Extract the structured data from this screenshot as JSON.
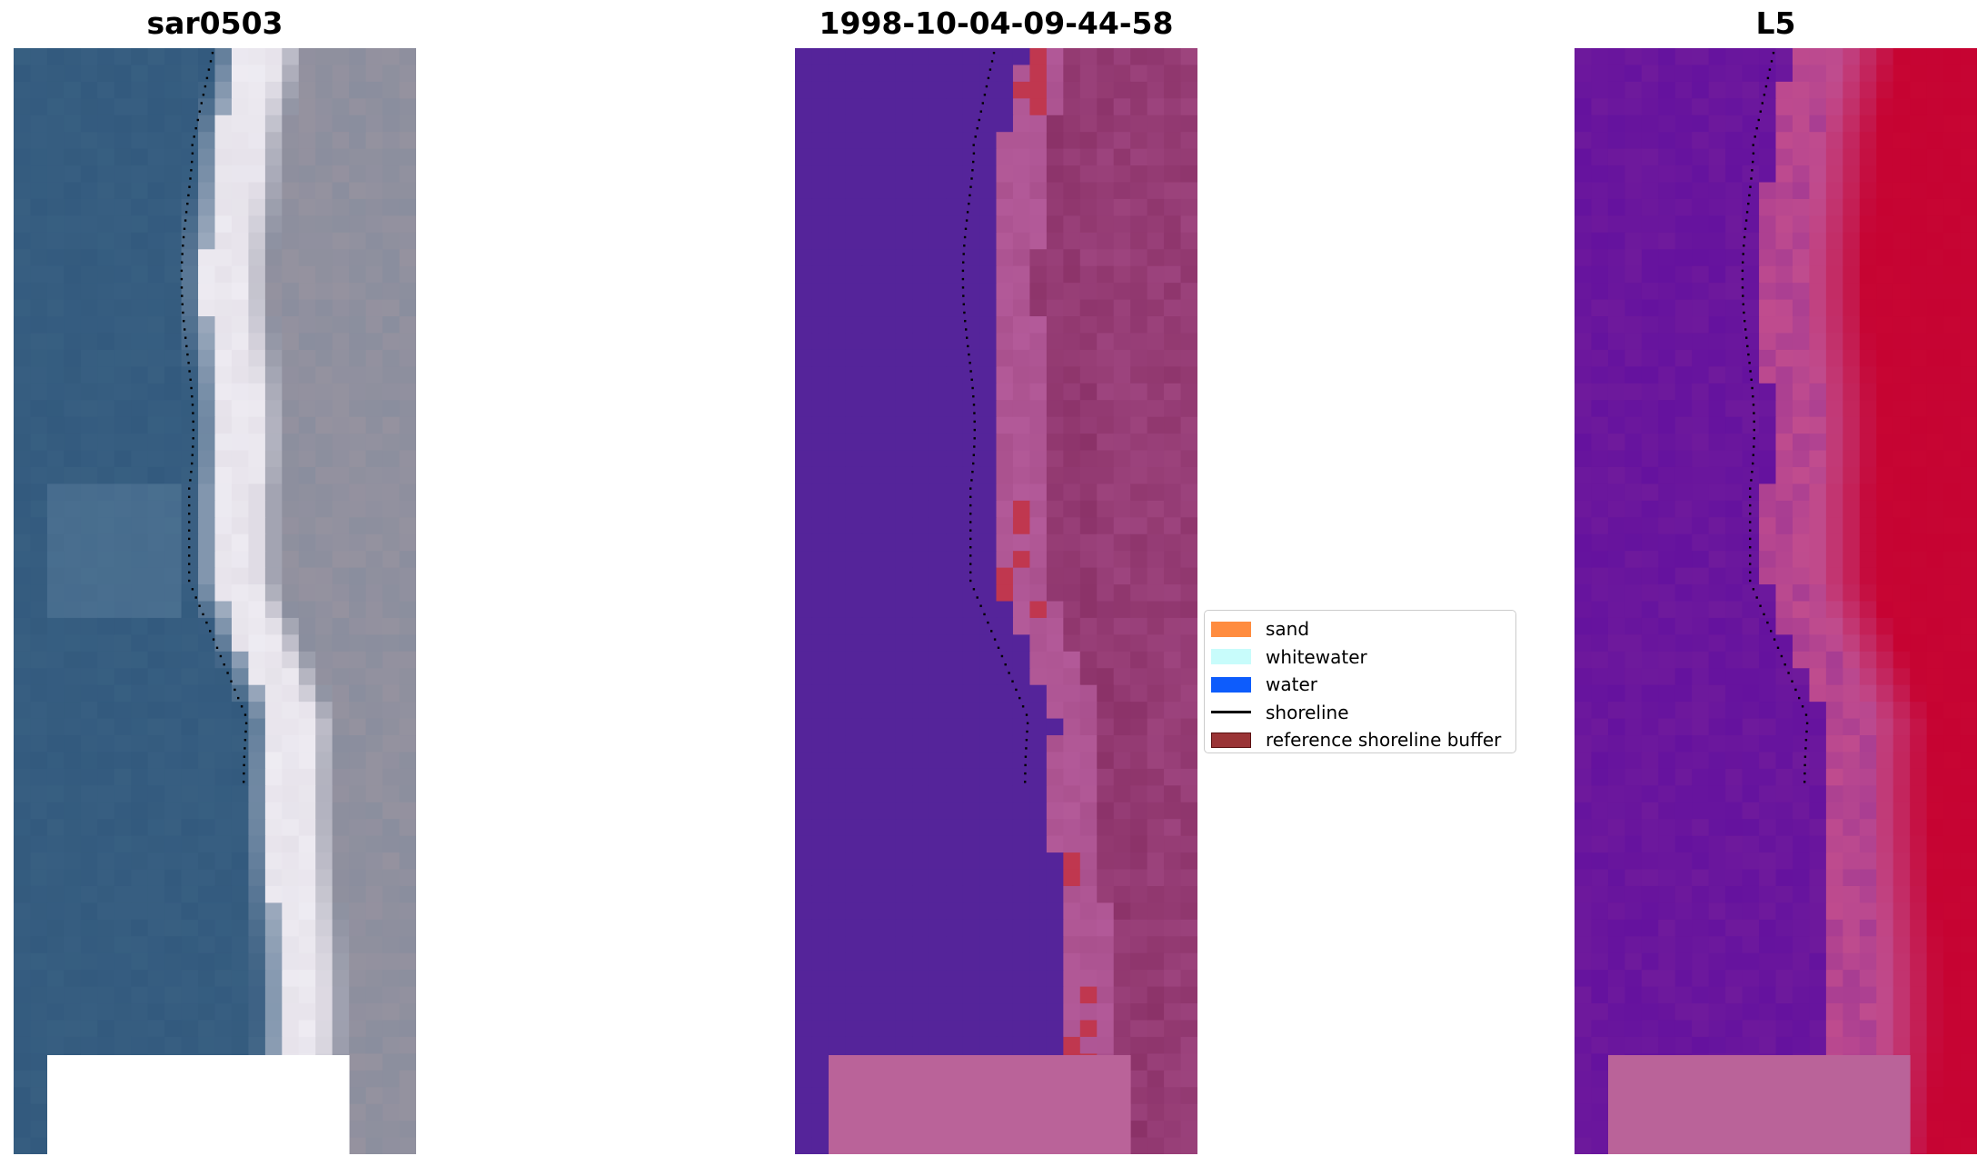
{
  "panels": [
    {
      "id": "rgb",
      "title": "sar0503",
      "style": "rgb",
      "colors": {
        "water": "#335a7e",
        "beach": "#e6e2ea",
        "land": "#8a8e9e",
        "nodata": "#ffffff"
      }
    },
    {
      "id": "classification",
      "title": "1998-10-04-09-44-58",
      "style": "classification",
      "colors": {
        "water": "#55249a",
        "sand_zone": "#b35a99",
        "land": "#8b3268",
        "buffer": "#c0374f",
        "nodata": "#ba6399"
      }
    },
    {
      "id": "index",
      "title": "L5",
      "style": "index",
      "colors": {
        "water": "#6f1a9c",
        "transition": "#c04c8e",
        "land": "#c60332",
        "nodata": "#ba6399"
      }
    }
  ],
  "legend": {
    "items": [
      {
        "label": "sand",
        "color": "#ff8c3f",
        "kind": "patch"
      },
      {
        "label": "whitewater",
        "color": "#c8fcfb",
        "kind": "patch"
      },
      {
        "label": "water",
        "color": "#0d5cfc",
        "kind": "patch"
      },
      {
        "label": "shoreline",
        "color": "#000000",
        "kind": "line"
      },
      {
        "label": "reference shoreline buffer",
        "color": "#9a3436",
        "kind": "patch-edge",
        "edge": "#5a1010"
      }
    ]
  }
}
